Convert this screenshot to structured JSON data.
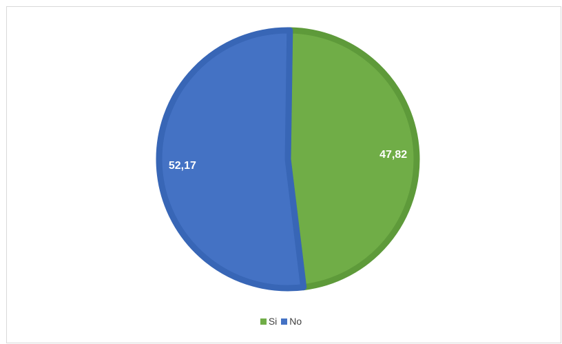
{
  "chart_data": {
    "type": "pie",
    "title": "",
    "categories": [
      "Si",
      "No"
    ],
    "values": [
      47.82,
      52.17
    ],
    "data_labels": [
      "47,82",
      "52,17"
    ],
    "colors": [
      "#70ad47",
      "#4472c4"
    ],
    "border_colors": [
      "#5e9a3a",
      "#3866b6"
    ],
    "legend_position": "bottom"
  }
}
